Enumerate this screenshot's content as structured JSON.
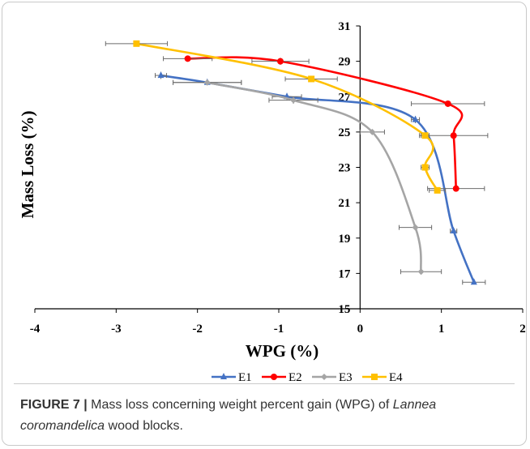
{
  "chart_data": {
    "type": "line",
    "xlabel": "WPG (%)",
    "ylabel": "Mass Loss (%)",
    "xlim": [
      -4,
      2
    ],
    "ylim": [
      15,
      31
    ],
    "xticks": [
      -4,
      -3,
      -2,
      -1,
      0,
      1,
      2
    ],
    "yticks": [
      15,
      17,
      19,
      21,
      23,
      25,
      27,
      29,
      31
    ],
    "grid": false,
    "legend_position": "bottom",
    "series": [
      {
        "name": "E1",
        "color": "#4472C4",
        "marker": "triangle",
        "x": [
          -2.45,
          -1.88,
          -0.9,
          0.68,
          1.15,
          1.4
        ],
        "y": [
          28.2,
          27.8,
          27.0,
          25.7,
          19.4,
          16.5
        ],
        "xerr": [
          0.07,
          0.42,
          0.18,
          0.05,
          0.04,
          0.14
        ],
        "yerr": [
          0.2,
          0.1,
          0.2,
          0.2,
          0.1,
          0.1
        ]
      },
      {
        "name": "E2",
        "color": "#FF0000",
        "marker": "circle",
        "x": [
          -2.12,
          -0.98,
          1.08,
          1.15,
          1.18
        ],
        "y": [
          29.15,
          29.0,
          26.6,
          24.8,
          21.8
        ],
        "xerr": [
          0.3,
          0.35,
          0.45,
          0.42,
          0.35
        ],
        "yerr": [
          0.1,
          0.2,
          0.1,
          0.1,
          0.1
        ]
      },
      {
        "name": "E3",
        "color": "#A5A5A5",
        "marker": "diamond",
        "x": [
          -1.88,
          -0.82,
          0.15,
          0.68,
          0.75
        ],
        "y": [
          27.8,
          26.8,
          25.0,
          19.6,
          17.1
        ],
        "xerr": [
          0.42,
          0.3,
          0.15,
          0.2,
          0.25
        ],
        "yerr": [
          0.1,
          0.2,
          0.1,
          0.1,
          0.1
        ]
      },
      {
        "name": "E4",
        "color": "#FFC000",
        "marker": "square",
        "x": [
          -2.75,
          -0.6,
          0.8,
          0.8,
          0.95
        ],
        "y": [
          30.0,
          28.0,
          24.8,
          23.0,
          21.7
        ],
        "xerr": [
          0.38,
          0.32,
          0.05,
          0.05,
          0.1
        ],
        "yerr": [
          0.1,
          0.1,
          0.1,
          0.1,
          0.1
        ]
      }
    ]
  },
  "caption": {
    "label": "FIGURE 7 |",
    "text_before": " Mass loss concerning weight percent gain (WPG) of ",
    "species": "Lannea coromandelica",
    "text_after": " wood blocks."
  }
}
